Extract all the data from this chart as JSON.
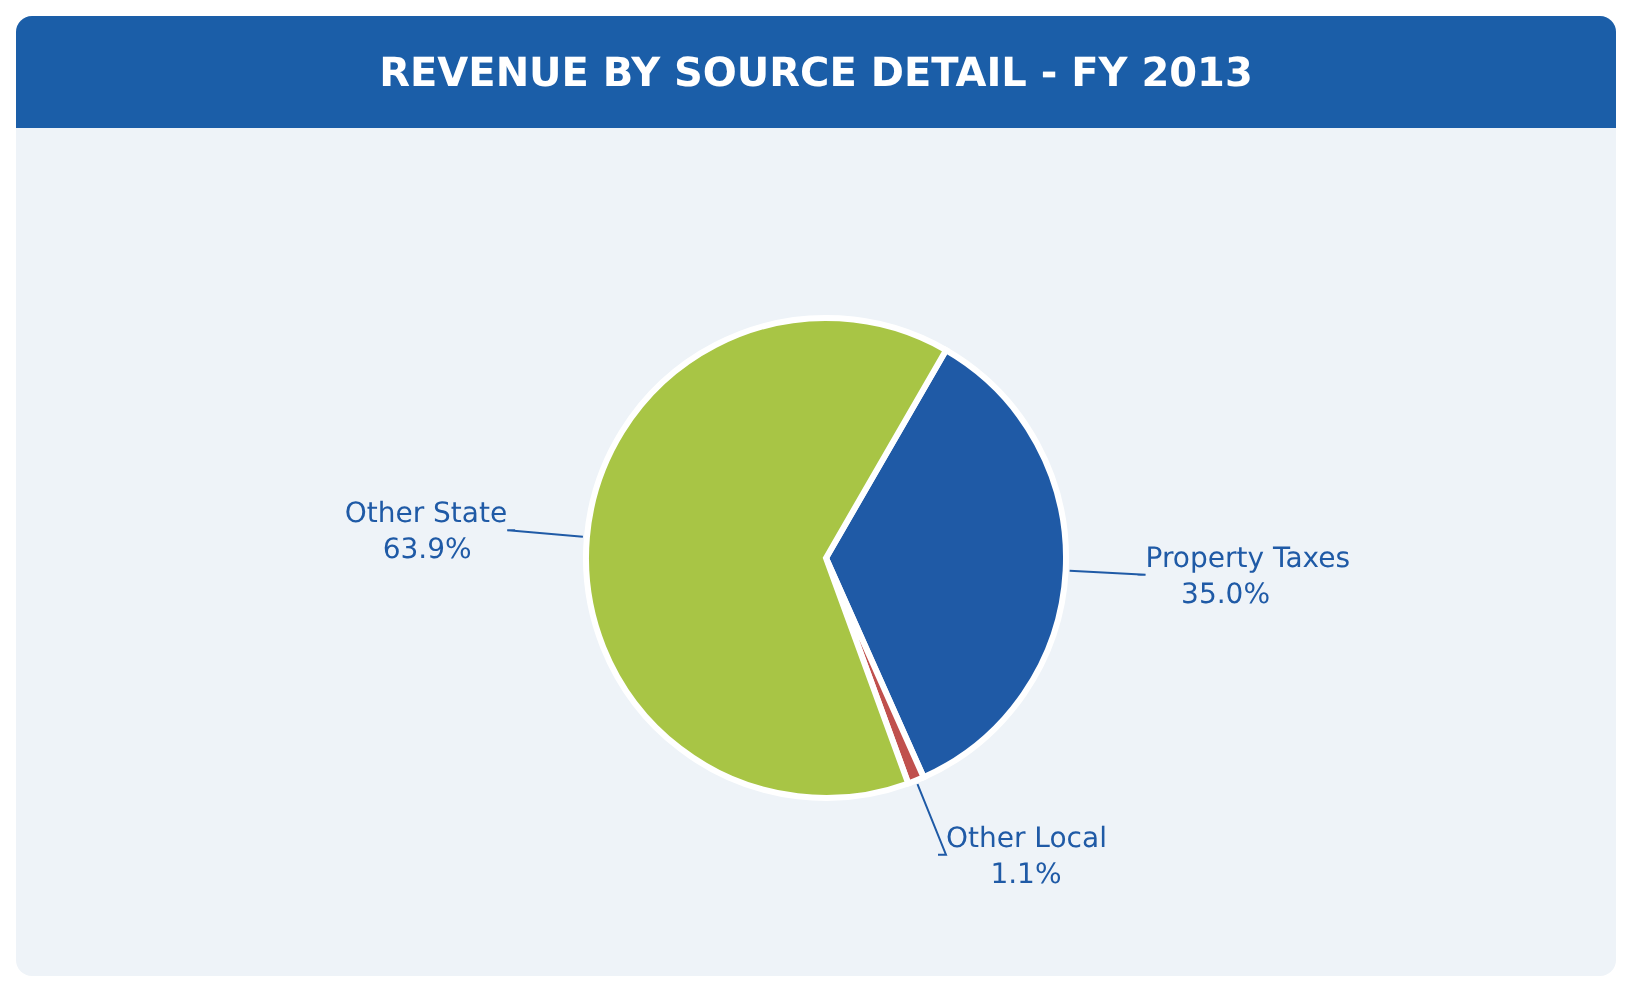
{
  "chart_data": {
    "type": "pie",
    "title": "REVENUE BY SOURCE DETAIL - FY 2013",
    "categories": [
      "Property Taxes",
      "Other Local",
      "Other State"
    ],
    "values": [
      35.0,
      1.1,
      63.9
    ],
    "value_labels": [
      "35.0%",
      "1.1%",
      "63.9%"
    ],
    "colors": [
      "#1f5aa6",
      "#c0504d",
      "#a8c545"
    ],
    "legend": false
  }
}
